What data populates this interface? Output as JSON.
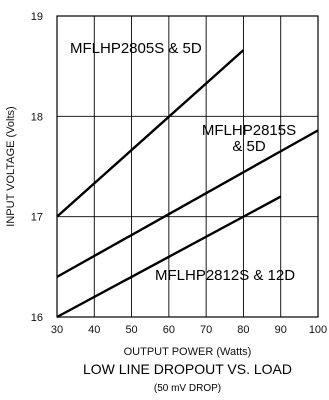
{
  "chart_data": {
    "type": "line",
    "title": "LOW LINE DROPOUT VS. LOAD",
    "subtitle": "(50 mV DROP)",
    "xlabel": "OUTPUT POWER (Watts)",
    "ylabel": "INPUT VOLTAGE (Volts)",
    "xlim": [
      30,
      100
    ],
    "ylim": [
      16,
      19
    ],
    "xticks": [
      30,
      40,
      50,
      60,
      70,
      80,
      90,
      100
    ],
    "yticks": [
      16,
      17,
      18,
      19
    ],
    "grid": true,
    "legend": "none",
    "series": [
      {
        "name": "MFLHP2805S & 5D",
        "label_lines": [
          "MFLHP2805S & 5D"
        ],
        "x": [
          30,
          80
        ],
        "y": [
          17.0,
          18.66
        ]
      },
      {
        "name": "MFLHP2815S & 5D",
        "label_lines": [
          "MFLHP2815S",
          "& 5D"
        ],
        "x": [
          30,
          100
        ],
        "y": [
          16.4,
          17.86
        ]
      },
      {
        "name": "MFLHP2812S & 12D",
        "label_lines": [
          "MFLHP2812S & 12D"
        ],
        "x": [
          30,
          90
        ],
        "y": [
          16.0,
          17.2
        ]
      }
    ]
  },
  "colors": {
    "line": "#000000",
    "axis": "#000000",
    "grid": "#000000",
    "background": "#ffffff"
  }
}
